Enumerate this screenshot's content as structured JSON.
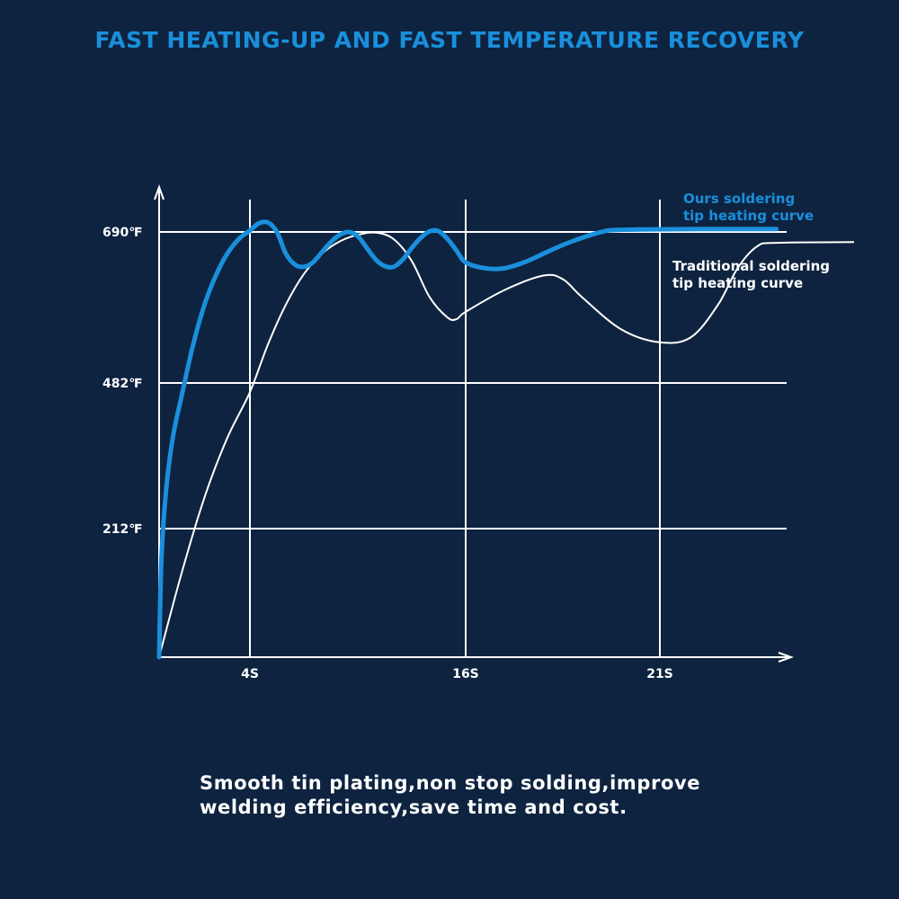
{
  "colors": {
    "background": "#0e233f",
    "ours": "#1a8fdc",
    "traditional": "#ffffff",
    "grid": "#ffffff"
  },
  "caption": {
    "line1": "Smooth tin plating,non stop solding,improve",
    "line2": "welding efficiency,save time and cost."
  },
  "chart_data": {
    "type": "line",
    "title": "FAST HEATING-UP AND FAST TEMPERATURE RECOVERY",
    "xlabel": "",
    "ylabel": "",
    "grid": true,
    "x_ticks": [
      {
        "value": 4,
        "label": "4S"
      },
      {
        "value": 16,
        "label": "16S"
      },
      {
        "value": 21,
        "label": "21S"
      }
    ],
    "y_ticks": [
      {
        "value": 212,
        "label": "212℉"
      },
      {
        "value": 482,
        "label": "482℉"
      },
      {
        "value": 690,
        "label": "690℉"
      }
    ],
    "legend_placement": "right",
    "series": [
      {
        "name": "Ours soldering tip heating curve",
        "name_lines": [
          "Ours soldering",
          "tip heating curve"
        ],
        "color": "#1a8fdc",
        "points": [
          [
            0,
            0
          ],
          [
            0.1,
            160
          ],
          [
            0.3,
            280
          ],
          [
            0.6,
            380
          ],
          [
            1,
            460
          ],
          [
            1.5,
            535
          ],
          [
            2,
            590
          ],
          [
            2.5,
            630
          ],
          [
            3,
            660
          ],
          [
            3.5,
            680
          ],
          [
            4,
            692
          ],
          [
            4.5,
            702
          ],
          [
            5,
            703
          ],
          [
            5.5,
            690
          ],
          [
            6,
            660
          ],
          [
            6.5,
            645
          ],
          [
            7,
            642
          ],
          [
            7.5,
            648
          ],
          [
            8,
            662
          ],
          [
            8.5,
            676
          ],
          [
            9,
            686
          ],
          [
            9.5,
            690
          ],
          [
            10,
            684
          ],
          [
            10.5,
            668
          ],
          [
            11,
            652
          ],
          [
            11.5,
            643
          ],
          [
            12,
            642
          ],
          [
            12.5,
            652
          ],
          [
            13,
            668
          ],
          [
            13.5,
            682
          ],
          [
            14,
            691
          ],
          [
            14.5,
            691
          ],
          [
            15,
            680
          ],
          [
            15.5,
            664
          ],
          [
            16,
            648
          ],
          [
            16.5,
            640
          ],
          [
            17,
            640
          ],
          [
            17.5,
            648
          ],
          [
            18,
            660
          ],
          [
            18.5,
            672
          ],
          [
            19,
            682
          ],
          [
            19.5,
            690
          ],
          [
            20,
            693
          ],
          [
            22,
            694
          ],
          [
            24,
            694
          ]
        ]
      },
      {
        "name": "Traditional soldering tip heating curve",
        "name_lines": [
          "Traditional soldering",
          "tip heating curve"
        ],
        "color": "#ffffff",
        "points": [
          [
            0,
            0
          ],
          [
            1,
            140
          ],
          [
            2,
            270
          ],
          [
            3,
            380
          ],
          [
            4,
            465
          ],
          [
            5,
            535
          ],
          [
            6,
            590
          ],
          [
            7,
            632
          ],
          [
            8,
            660
          ],
          [
            9,
            677
          ],
          [
            10,
            686
          ],
          [
            11,
            689
          ],
          [
            12,
            680
          ],
          [
            13,
            650
          ],
          [
            14,
            600
          ],
          [
            15,
            572
          ],
          [
            15.5,
            570
          ],
          [
            16,
            580
          ],
          [
            17,
            610
          ],
          [
            18,
            630
          ],
          [
            18.5,
            625
          ],
          [
            19,
            600
          ],
          [
            20,
            556
          ],
          [
            21,
            538
          ],
          [
            21.8,
            545
          ],
          [
            22.5,
            590
          ],
          [
            23,
            640
          ],
          [
            23.5,
            670
          ],
          [
            24,
            675
          ],
          [
            26,
            676
          ]
        ]
      }
    ]
  }
}
